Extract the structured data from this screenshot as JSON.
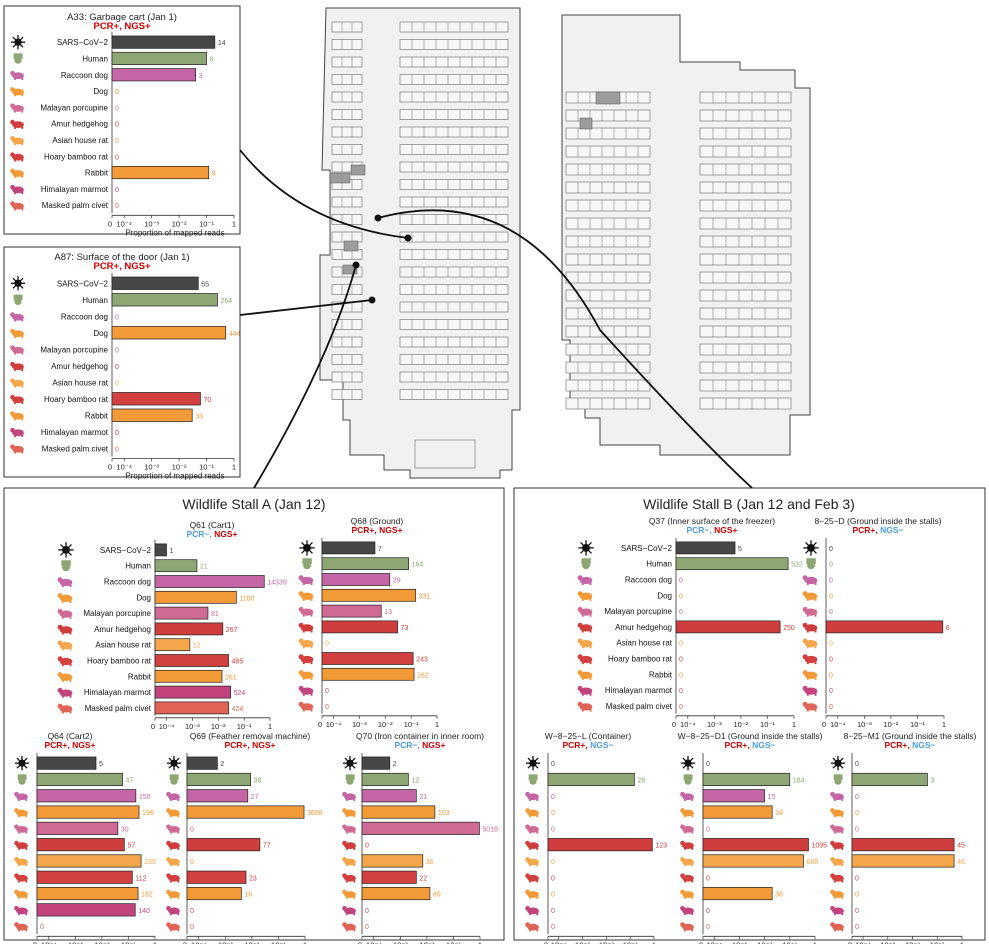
{
  "colors": {
    "sars": "#474747",
    "human": "#8ea674",
    "raccoon_dog": "#c465a6",
    "dog": "#f39a38",
    "porcupine": "#cf6a94",
    "hedgehog": "#cf3e3d",
    "house_rat": "#f3a64a",
    "bamboo_rat": "#d2413f",
    "rabbit": "#f39a38",
    "marmot": "#c2447c",
    "civet": "#e06456",
    "pcr_pos": "#cc0000",
    "pcr_neg": "#4f9be0",
    "map_fill": "#f1f1f1",
    "map_stroke": "#444444"
  },
  "species": [
    {
      "name": "SARS−CoV−2",
      "icon": "virus-icon",
      "color_key": "sars"
    },
    {
      "name": "Human",
      "icon": "hand-icon",
      "color_key": "human"
    },
    {
      "name": "Raccoon dog",
      "icon": "raccoon-dog-icon",
      "color_key": "raccoon_dog"
    },
    {
      "name": "Dog",
      "icon": "dog-icon",
      "color_key": "dog"
    },
    {
      "name": "Malayan porcupine",
      "icon": "porcupine-icon",
      "color_key": "porcupine"
    },
    {
      "name": "Amur hedgehog",
      "icon": "hedgehog-icon",
      "color_key": "hedgehog"
    },
    {
      "name": "Asian house rat",
      "icon": "rat-icon",
      "color_key": "house_rat"
    },
    {
      "name": "Hoary bamboo rat",
      "icon": "bamboo-rat-icon",
      "color_key": "bamboo_rat"
    },
    {
      "name": "Rabbit",
      "icon": "rabbit-icon",
      "color_key": "rabbit"
    },
    {
      "name": "Himalayan marmot",
      "icon": "marmot-icon",
      "color_key": "marmot"
    },
    {
      "name": "Masked palm civet",
      "icon": "civet-icon",
      "color_key": "civet"
    }
  ],
  "axis": {
    "tick_labels": [
      "0",
      "10⁻⁴",
      "10⁻³",
      "10⁻²",
      "10⁻¹",
      "1"
    ],
    "xlabel": "Proportion of mapped reads"
  },
  "stall_a_title": "Wildlife Stall A (Jan 12)",
  "stall_b_title": "Wildlife Stall B (Jan 12 and Feb 3)",
  "chart_data": [
    {
      "type": "bar",
      "id": "A33",
      "title": "A33: Garbage cart (Jan 1)",
      "pcr": "PCR+",
      "ngs": "NGS+",
      "pcr_pos": true,
      "ngs_pos": true,
      "categories": [
        "SARS−CoV−2",
        "Human",
        "Raccoon dog",
        "Dog",
        "Malayan porcupine",
        "Amur hedgehog",
        "Asian house rat",
        "Hoary bamboo rat",
        "Rabbit",
        "Himalayan marmot",
        "Masked palm civet"
      ],
      "values": [
        0.2,
        0.1,
        0.04,
        0,
        0,
        0,
        0,
        0,
        0.12,
        0,
        0
      ],
      "reads": [
        14,
        8,
        3,
        0,
        0,
        0,
        0,
        0,
        9,
        0,
        0
      ],
      "xlabel": "Proportion of mapped reads",
      "xscale": "log"
    },
    {
      "type": "bar",
      "id": "A87",
      "title": "A87: Surface of the door (Jan 1)",
      "pcr": "PCR+",
      "ngs": "NGS+",
      "pcr_pos": true,
      "ngs_pos": true,
      "categories": [
        "SARS−CoV−2",
        "Human",
        "Raccoon dog",
        "Dog",
        "Malayan porcupine",
        "Amur hedgehog",
        "Asian house rat",
        "Hoary bamboo rat",
        "Rabbit",
        "Himalayan marmot",
        "Masked palm civet"
      ],
      "values": [
        0.05,
        0.25,
        0,
        0.5,
        0,
        0,
        0,
        0.06,
        0.03,
        0,
        0
      ],
      "reads": [
        55,
        264,
        0,
        444,
        0,
        0,
        0,
        70,
        33,
        0,
        0
      ],
      "xlabel": "Proportion of mapped reads",
      "xscale": "log"
    },
    {
      "type": "bar",
      "id": "Q61",
      "title": "Q61 (Cart1)",
      "pcr": "PCR−",
      "ngs": "NGS+",
      "pcr_pos": false,
      "ngs_pos": true,
      "categories": [
        "SARS−CoV−2",
        "Human",
        "Raccoon dog",
        "Dog",
        "Malayan porcupine",
        "Amur hedgehog",
        "Asian house rat",
        "Hoary bamboo rat",
        "Rabbit",
        "Himalayan marmot",
        "Masked palm civet"
      ],
      "values": [
        4e-05,
        0.0015,
        0.6,
        0.05,
        0.004,
        0.015,
        0.0008,
        0.025,
        0.014,
        0.03,
        0.025
      ],
      "reads": [
        1,
        21,
        14339,
        1100,
        81,
        267,
        12,
        485,
        261,
        524,
        424
      ],
      "xscale": "log"
    },
    {
      "type": "bar",
      "id": "Q68",
      "title": "Q68 (Ground)",
      "pcr": "PCR+",
      "ngs": "NGS+",
      "pcr_pos": true,
      "ngs_pos": true,
      "categories": [
        "SARS−CoV−2",
        "Human",
        "Raccoon dog",
        "Dog",
        "Malayan porcupine",
        "Amur hedgehog",
        "Asian house rat",
        "Hoary bamboo rat",
        "Rabbit",
        "Himalayan marmot",
        "Masked palm civet"
      ],
      "values": [
        0.004,
        0.08,
        0.015,
        0.15,
        0.007,
        0.03,
        0,
        0.12,
        0.13,
        0,
        0
      ],
      "reads": [
        7,
        164,
        29,
        331,
        13,
        73,
        0,
        243,
        262,
        0,
        0
      ],
      "xscale": "log"
    },
    {
      "type": "bar",
      "id": "Q64",
      "title": "Q64 (Cart2)",
      "pcr": "PCR+",
      "ngs": "NGS+",
      "pcr_pos": true,
      "ngs_pos": true,
      "categories": [
        "SARS−CoV−2",
        "Human",
        "Raccoon dog",
        "Dog",
        "Malayan porcupine",
        "Amur hedgehog",
        "Asian house rat",
        "Hoary bamboo rat",
        "Rabbit",
        "Himalayan marmot",
        "Masked palm civet"
      ],
      "values": [
        0.006,
        0.06,
        0.19,
        0.25,
        0.04,
        0.07,
        0.3,
        0.14,
        0.23,
        0.18,
        0
      ],
      "reads": [
        5,
        47,
        150,
        196,
        30,
        57,
        239,
        112,
        182,
        140,
        0
      ],
      "xscale": "log"
    },
    {
      "type": "bar",
      "id": "Q69",
      "title": "Q69 (Feather removal machine)",
      "pcr": "PCR+",
      "ngs": "NGS+",
      "pcr_pos": true,
      "ngs_pos": true,
      "categories": [
        "SARS−CoV−2",
        "Human",
        "Raccoon dog",
        "Dog",
        "Malayan porcupine",
        "Amur hedgehog",
        "Asian house rat",
        "Hoary bamboo rat",
        "Rabbit",
        "Himalayan marmot",
        "Masked palm civet"
      ],
      "values": [
        0.0005,
        0.009,
        0.007,
        0.92,
        0,
        0.02,
        0,
        0.006,
        0.004,
        0,
        0
      ],
      "reads": [
        2,
        38,
        27,
        3688,
        0,
        77,
        0,
        23,
        16,
        0,
        0
      ],
      "xscale": "log"
    },
    {
      "type": "bar",
      "id": "Q70",
      "title": "Q70 (Iron container in inner room)",
      "pcr": "PCR−",
      "ngs": "NGS+",
      "pcr_pos": false,
      "ngs_pos": true,
      "categories": [
        "SARS−CoV−2",
        "Human",
        "Raccoon dog",
        "Dog",
        "Malayan porcupine",
        "Amur hedgehog",
        "Asian house rat",
        "Hoary bamboo rat",
        "Rabbit",
        "Himalayan marmot",
        "Masked palm civet"
      ],
      "values": [
        0.0004,
        0.002,
        0.004,
        0.02,
        0.95,
        0,
        0.007,
        0.004,
        0.013,
        0,
        0
      ],
      "reads": [
        2,
        12,
        21,
        103,
        5018,
        0,
        36,
        22,
        69,
        0,
        0
      ],
      "xscale": "log"
    },
    {
      "type": "bar",
      "id": "Q37",
      "title": "Q37 (Inner surface of the freezer)",
      "pcr": "PCR−",
      "ngs": "NGS+",
      "pcr_pos": false,
      "ngs_pos": true,
      "categories": [
        "SARS−CoV−2",
        "Human",
        "Raccoon dog",
        "Dog",
        "Malayan porcupine",
        "Amur hedgehog",
        "Asian house rat",
        "Hoary bamboo rat",
        "Rabbit",
        "Himalayan marmot",
        "Masked palm civet"
      ],
      "values": [
        0.006,
        0.6,
        0,
        0,
        0,
        0.3,
        0,
        0,
        0,
        0,
        0
      ],
      "reads": [
        5,
        532,
        0,
        0,
        0,
        250,
        0,
        0,
        0,
        0,
        0
      ],
      "xscale": "log"
    },
    {
      "type": "bar",
      "id": "8-25-D",
      "title": "8−25−D (Ground inside the stalls)",
      "pcr": "PCR+",
      "ngs": "NGS−",
      "pcr_pos": true,
      "ngs_pos": false,
      "categories": [
        "SARS−CoV−2",
        "Human",
        "Raccoon dog",
        "Dog",
        "Malayan porcupine",
        "Amur hedgehog",
        "Asian house rat",
        "Hoary bamboo rat",
        "Rabbit",
        "Himalayan marmot",
        "Masked palm civet"
      ],
      "values": [
        0,
        0,
        0,
        0,
        0,
        0.9,
        0,
        0,
        0,
        0,
        0
      ],
      "reads": [
        0,
        0,
        0,
        0,
        0,
        6,
        0,
        0,
        0,
        0,
        0
      ],
      "xscale": "log"
    },
    {
      "type": "bar",
      "id": "W-8-25-L",
      "title": "W−8−25−L (Container)",
      "pcr": "PCR+",
      "ngs": "NGS−",
      "pcr_pos": true,
      "ngs_pos": false,
      "categories": [
        "SARS−CoV−2",
        "Human",
        "Raccoon dog",
        "Dog",
        "Malayan porcupine",
        "Amur hedgehog",
        "Asian house rat",
        "Hoary bamboo rat",
        "Rabbit",
        "Himalayan marmot",
        "Masked palm civet"
      ],
      "values": [
        0,
        0.15,
        0,
        0,
        0,
        0.85,
        0,
        0,
        0,
        0,
        0
      ],
      "reads": [
        0,
        28,
        0,
        0,
        0,
        123,
        0,
        0,
        0,
        0,
        0
      ],
      "xscale": "log"
    },
    {
      "type": "bar",
      "id": "W-8-25-D1",
      "title": "W−8−25−D1 (Ground inside the stalls)",
      "pcr": "PCR+",
      "ngs": "NGS−",
      "pcr_pos": true,
      "ngs_pos": false,
      "categories": [
        "SARS−CoV−2",
        "Human",
        "Raccoon dog",
        "Dog",
        "Malayan porcupine",
        "Amur hedgehog",
        "Asian house rat",
        "Hoary bamboo rat",
        "Rabbit",
        "Himalayan marmot",
        "Masked palm civet"
      ],
      "values": [
        0,
        0.1,
        0.01,
        0.02,
        0,
        0.55,
        0.35,
        0,
        0.02,
        0,
        0
      ],
      "reads": [
        0,
        184,
        15,
        34,
        0,
        1095,
        688,
        0,
        36,
        0,
        0
      ],
      "xscale": "log"
    },
    {
      "type": "bar",
      "id": "8-25-M1",
      "title": "8−25−M1 (Ground inside the stalls)",
      "pcr": "PCR+",
      "ngs": "NGS−",
      "pcr_pos": true,
      "ngs_pos": false,
      "categories": [
        "SARS−CoV−2",
        "Human",
        "Raccoon dog",
        "Dog",
        "Malayan porcupine",
        "Amur hedgehog",
        "Asian house rat",
        "Hoary bamboo rat",
        "Rabbit",
        "Himalayan marmot",
        "Masked palm civet"
      ],
      "values": [
        0,
        0.04,
        0,
        0,
        0,
        0.48,
        0.48,
        0,
        0,
        0,
        0
      ],
      "reads": [
        0,
        3,
        0,
        0,
        0,
        45,
        46,
        0,
        0,
        0,
        0
      ],
      "xscale": "log"
    }
  ]
}
